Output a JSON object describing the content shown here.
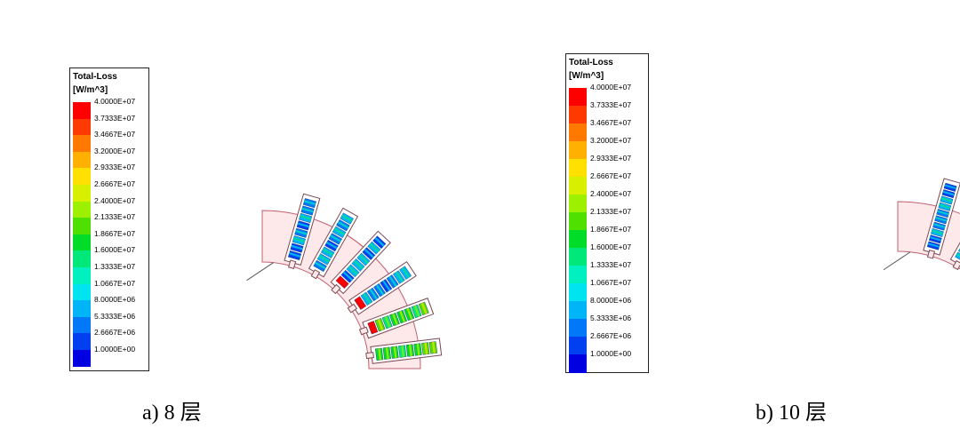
{
  "legend": {
    "title": "Total-Loss",
    "unit": "[W/m^3]",
    "values": [
      "4.0000E+07",
      "3.7333E+07",
      "3.4667E+07",
      "3.2000E+07",
      "2.9333E+07",
      "2.6667E+07",
      "2.4000E+07",
      "2.1333E+07",
      "1.8667E+07",
      "1.6000E+07",
      "1.3333E+07",
      "1.0667E+07",
      "8.0000E+06",
      "5.3333E+06",
      "2.6667E+06",
      "1.0000E+00"
    ],
    "colors": [
      "#ff0000",
      "#ff3a00",
      "#ff7800",
      "#ffb000",
      "#ffe000",
      "#d8f000",
      "#9cf000",
      "#50e000",
      "#00dc28",
      "#00e87a",
      "#00f0c0",
      "#00e4f0",
      "#00b4f8",
      "#0078f8",
      "#0040f0",
      "#0000e0"
    ]
  },
  "panels": [
    {
      "caption": "a) 8 层",
      "conductors_per_slot": 8
    },
    {
      "caption": "b) 10 层",
      "conductors_per_slot": 10
    }
  ],
  "colors": {
    "stator_fill": "#fde8ea",
    "stator_edge": "#c06070",
    "slot_edge": "#7a4a55"
  }
}
